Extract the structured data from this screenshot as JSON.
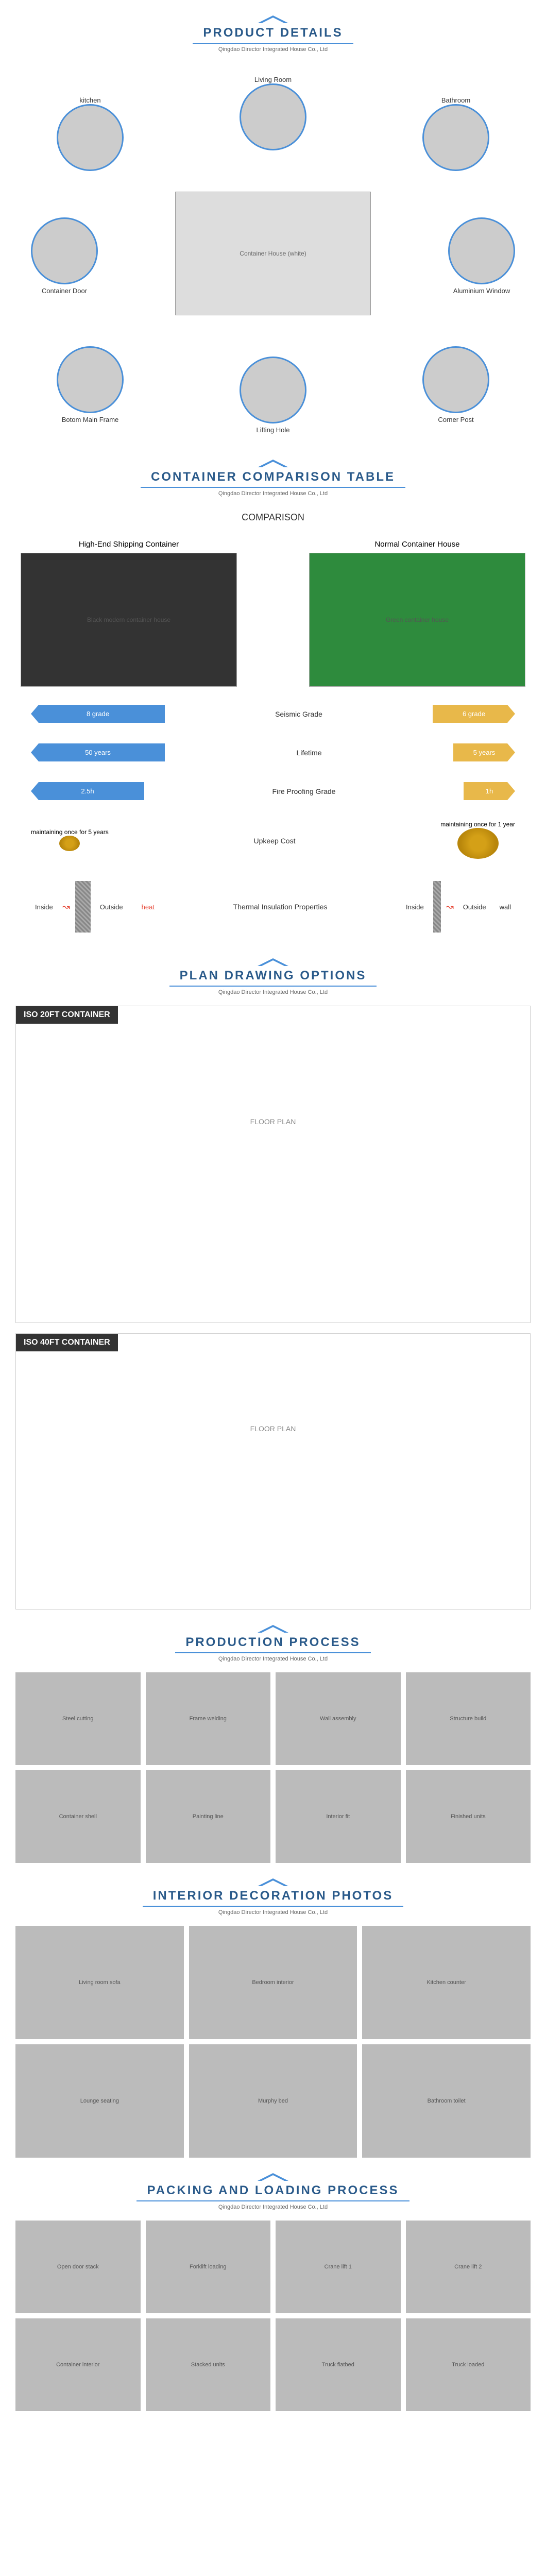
{
  "company": "Qingdao Director Integrated House Co., Ltd",
  "sections": {
    "details": {
      "title": "PRODUCT DETAILS"
    },
    "comparison": {
      "title": "CONTAINER COMPARISON TABLE",
      "subtitle": "COMPARISON"
    },
    "plans": {
      "title": "PLAN DRAWING OPTIONS"
    },
    "production": {
      "title": "PRODUCTION PROCESS"
    },
    "interior": {
      "title": "INTERIOR DECORATION PHOTOS"
    },
    "packing": {
      "title": "PACKING AND LOADING PROCESS"
    }
  },
  "colors": {
    "primary_blue": "#4a90d9",
    "title_blue": "#2a5a8a",
    "arrow_yellow": "#e8b84a",
    "heat_red": "#e74c3c"
  },
  "detail_nodes": {
    "center": "Container House (white)",
    "top": "Living Room",
    "top_left": "kitchen",
    "top_right": "Bathroom",
    "mid_left": "Container Door",
    "mid_right": "Aluminium Window",
    "bot_left": "Botom Main Frame",
    "bot_right": "Corner Post",
    "bottom": "Lifting Hole"
  },
  "comparison": {
    "left_title": "High-End Shipping Container",
    "right_title": "Normal Container House",
    "left_img": "Black modern container house",
    "right_img": "Green container house",
    "metrics": [
      {
        "left_val": "8 grade",
        "label": "Seismic Grade",
        "right_val": "6 grade",
        "left_w": 260,
        "right_w": 160
      },
      {
        "left_val": "50 years",
        "label": "Lifetime",
        "right_val": "5 years",
        "left_w": 260,
        "right_w": 120
      },
      {
        "left_val": "2.5h",
        "label": "Fire Proofing Grade",
        "right_val": "1h",
        "left_w": 220,
        "right_w": 100
      }
    ],
    "upkeep": {
      "left": "maintaining once for 5 years",
      "label": "Upkeep Cost",
      "right": "maintaining once for 1 year"
    },
    "thermal": {
      "inside": "Inside",
      "outside": "Outside",
      "wall": "wall",
      "heat": "heat",
      "label": "Thermal Insulation Properties"
    }
  },
  "plans": {
    "p20_title": "ISO 20FT CONTAINER",
    "p20_caption": "FLOOR PLAN",
    "p40_title": "ISO 40FT CONTAINER",
    "p40_caption": "FLOOR PLAN"
  },
  "production_cells": [
    "Steel cutting",
    "Frame welding",
    "Wall assembly",
    "Structure build",
    "Container shell",
    "Painting line",
    "Interior fit",
    "Finished units"
  ],
  "interior_cells": [
    "Living room sofa",
    "Bedroom interior",
    "Kitchen counter",
    "Lounge seating",
    "Murphy bed",
    "Bathroom toilet"
  ],
  "packing_cells": [
    "Open door stack",
    "Forklift loading",
    "Crane lift 1",
    "Crane lift 2",
    "Container interior",
    "Stacked units",
    "Truck flatbed",
    "Truck loaded"
  ]
}
